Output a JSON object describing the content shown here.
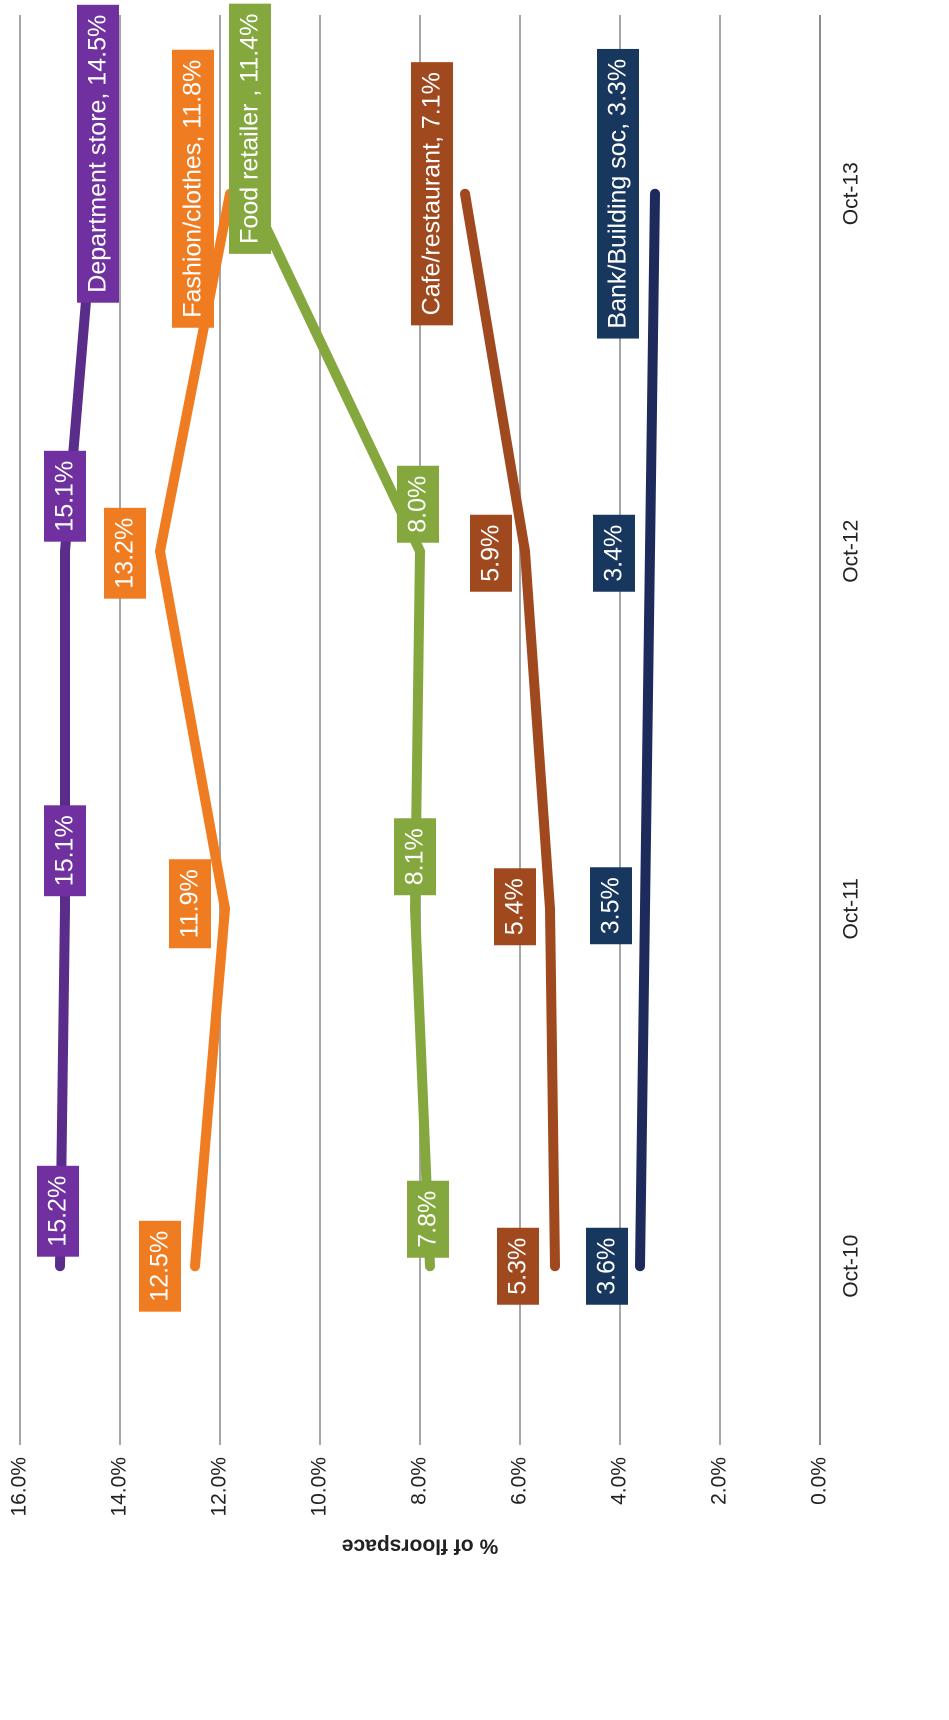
{
  "chart_data": {
    "type": "line",
    "y_label": "% of floorspace",
    "categories": [
      "Oct-10",
      "Oct-11",
      "Oct-12",
      "Oct-13"
    ],
    "ylim": [
      0,
      16
    ],
    "yticks": [
      {
        "value": 0,
        "label": "0.0%"
      },
      {
        "value": 2,
        "label": "2.0%"
      },
      {
        "value": 4,
        "label": "4.0%"
      },
      {
        "value": 6,
        "label": "6.0%"
      },
      {
        "value": 8,
        "label": "8.0%"
      },
      {
        "value": 10,
        "label": "10.0%"
      },
      {
        "value": 12,
        "label": "12.0%"
      },
      {
        "value": 14,
        "label": "14.0%"
      },
      {
        "value": 16,
        "label": "16.0%"
      }
    ],
    "grid": true,
    "series": [
      {
        "color": "#5a2d8a",
        "label_color": "#7030a0",
        "values": [
          15.2,
          15.1,
          15.1,
          14.5
        ],
        "value_labels": [
          "15.2%",
          "15.1%",
          "15.1%",
          "Department store, 14.5%"
        ]
      },
      {
        "color": "#f07c22",
        "label_color": "#f07c22",
        "values": [
          12.5,
          11.9,
          13.2,
          11.8
        ],
        "value_labels": [
          "12.5%",
          "11.9%",
          "13.2%",
          "Fashion/clothes, 11.8%"
        ]
      },
      {
        "color": "#84a83e",
        "label_color": "#84a83e",
        "values": [
          7.8,
          8.1,
          8.0,
          11.4
        ],
        "value_labels": [
          "7.8%",
          "8.1%",
          "8.0%",
          "Food retailer , 11.4%"
        ]
      },
      {
        "color": "#a0481e",
        "label_color": "#a0481e",
        "values": [
          5.3,
          5.4,
          5.9,
          7.1
        ],
        "value_labels": [
          "5.3%",
          "5.4%",
          "5.9%",
          "Cafe/restaurant, 7.1%"
        ]
      },
      {
        "color": "#1f2a5c",
        "label_color": "#17375e",
        "values": [
          3.6,
          3.5,
          3.4,
          3.3
        ],
        "value_labels": [
          "3.6%",
          "3.5%",
          "3.4%",
          "Bank/Building soc, 3.3%"
        ]
      }
    ]
  }
}
